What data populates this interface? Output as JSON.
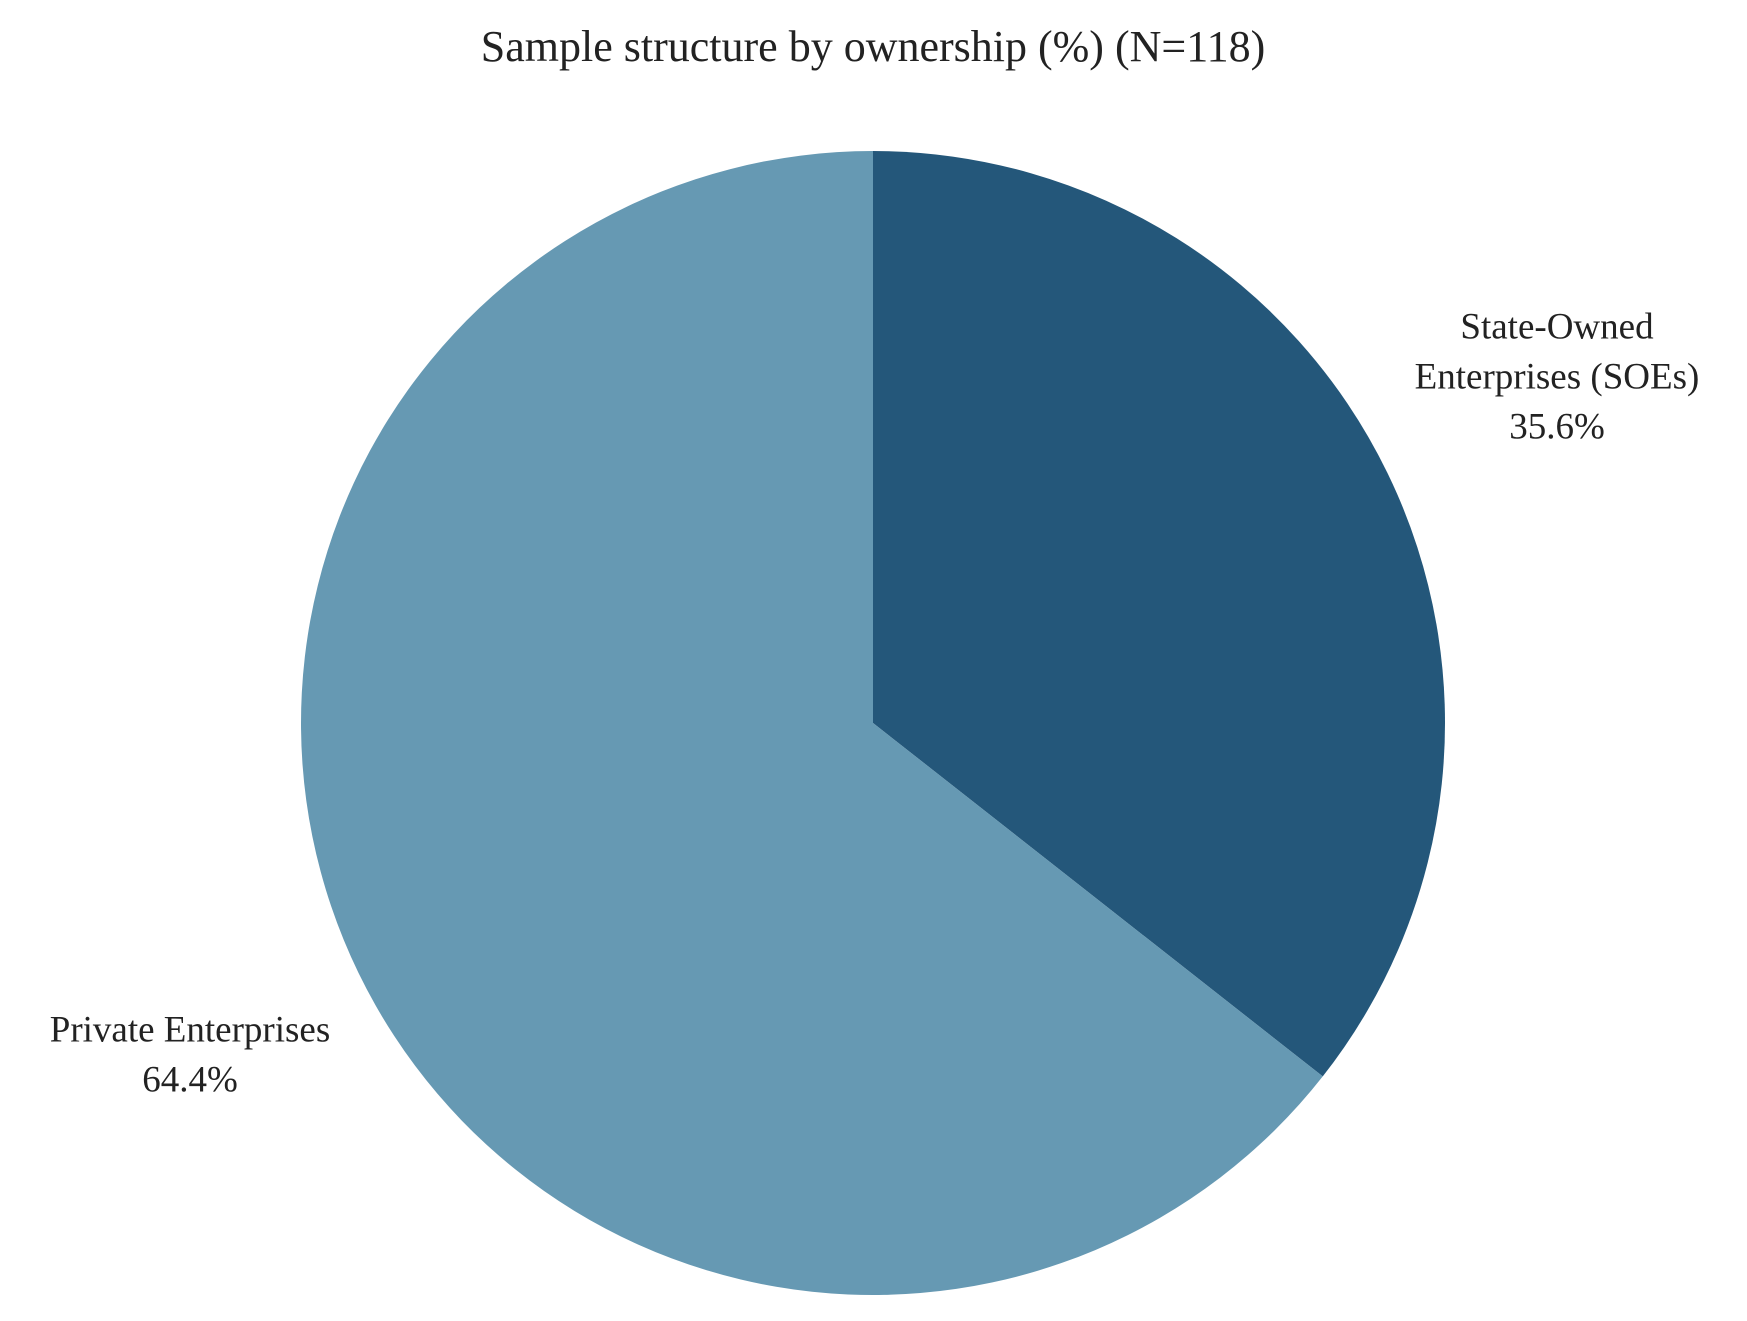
{
  "chart_data": {
    "type": "pie",
    "title": "Sample structure by ownership (%) (N=118)",
    "start_angle_deg": 0,
    "direction": "clockwise",
    "slices": [
      {
        "label_lines": [
          "State-Owned",
          "Enterprises (SOEs)"
        ],
        "value": 35.6,
        "value_label": "35.6%",
        "color": "#24577a"
      },
      {
        "label_lines": [
          "Private Enterprises"
        ],
        "value": 64.4,
        "value_label": "64.4%",
        "color": "#6699b3"
      }
    ]
  }
}
